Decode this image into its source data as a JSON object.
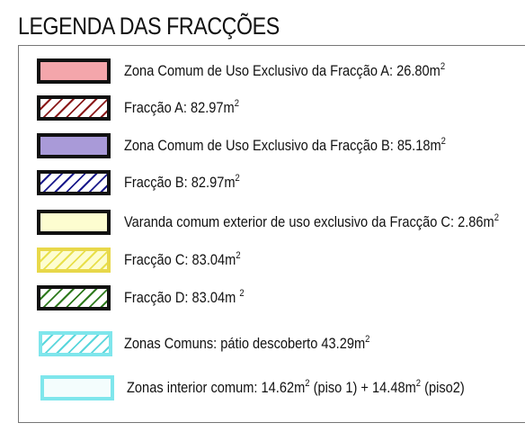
{
  "title": "LEGENDA DAS FRACÇÕES",
  "legend": [
    {
      "swatch": "solid",
      "fill": "#f4a6ab",
      "border": "#111111",
      "pre": "Zona Comum de Uso Exclusivo da Fracção A: 26.80m",
      "sup": "2",
      "post": "",
      "sup2": "",
      "post2": ""
    },
    {
      "swatch": "hatch",
      "fill": "#ffffff",
      "hatch": "#8b1a1a",
      "border": "#111111",
      "pre": "Fracção A: 82.97m",
      "sup": "2",
      "post": "",
      "sup2": "",
      "post2": ""
    },
    {
      "swatch": "solid",
      "fill": "#a99ad8",
      "border": "#111111",
      "pre": "Zona Comum de Uso Exclusivo da Fracção B: 85.18m",
      "sup": "2",
      "post": "",
      "sup2": "",
      "post2": ""
    },
    {
      "swatch": "hatch",
      "fill": "#ffffff",
      "hatch": "#1a1a8b",
      "border": "#111111",
      "pre": "Fracção B: 82.97m",
      "sup": "2",
      "post": "",
      "sup2": "",
      "post2": ""
    },
    {
      "swatch": "solid",
      "fill": "#fdfdd0",
      "border": "#111111",
      "pre": "Varanda comum exterior de uso exclusivo da Fracção C: 2.86m",
      "sup": "2",
      "post": "",
      "sup2": "",
      "post2": ""
    },
    {
      "swatch": "hatch",
      "fill": "#fdfdd0",
      "hatch": "#e8e04a",
      "border": "#e8d84a",
      "pre": "Fracção C: 83.04m",
      "sup": "2",
      "post": "",
      "sup2": "",
      "post2": ""
    },
    {
      "swatch": "hatch",
      "fill": "#ffffff",
      "hatch": "#2f7a1e",
      "border": "#111111",
      "pre": "Fracção D: 83.04m ",
      "sup": "2",
      "post": "",
      "sup2": "",
      "post2": ""
    },
    {
      "swatch": "hatch",
      "fill": "#ffffff",
      "hatch": "#5ad6dc",
      "border": "#7fe6ec",
      "pre": "Zonas Comuns: pátio descoberto 43.29m",
      "sup": "2",
      "post": "",
      "sup2": "",
      "post2": ""
    },
    {
      "swatch": "solid",
      "fill": "#f4fdfd",
      "border": "#7fe6ec",
      "pre": "Zonas interior comum: 14.62m",
      "sup": "2",
      "post": " (piso 1) + 14.48m",
      "sup2": "2",
      "post2": " (piso2)"
    }
  ]
}
